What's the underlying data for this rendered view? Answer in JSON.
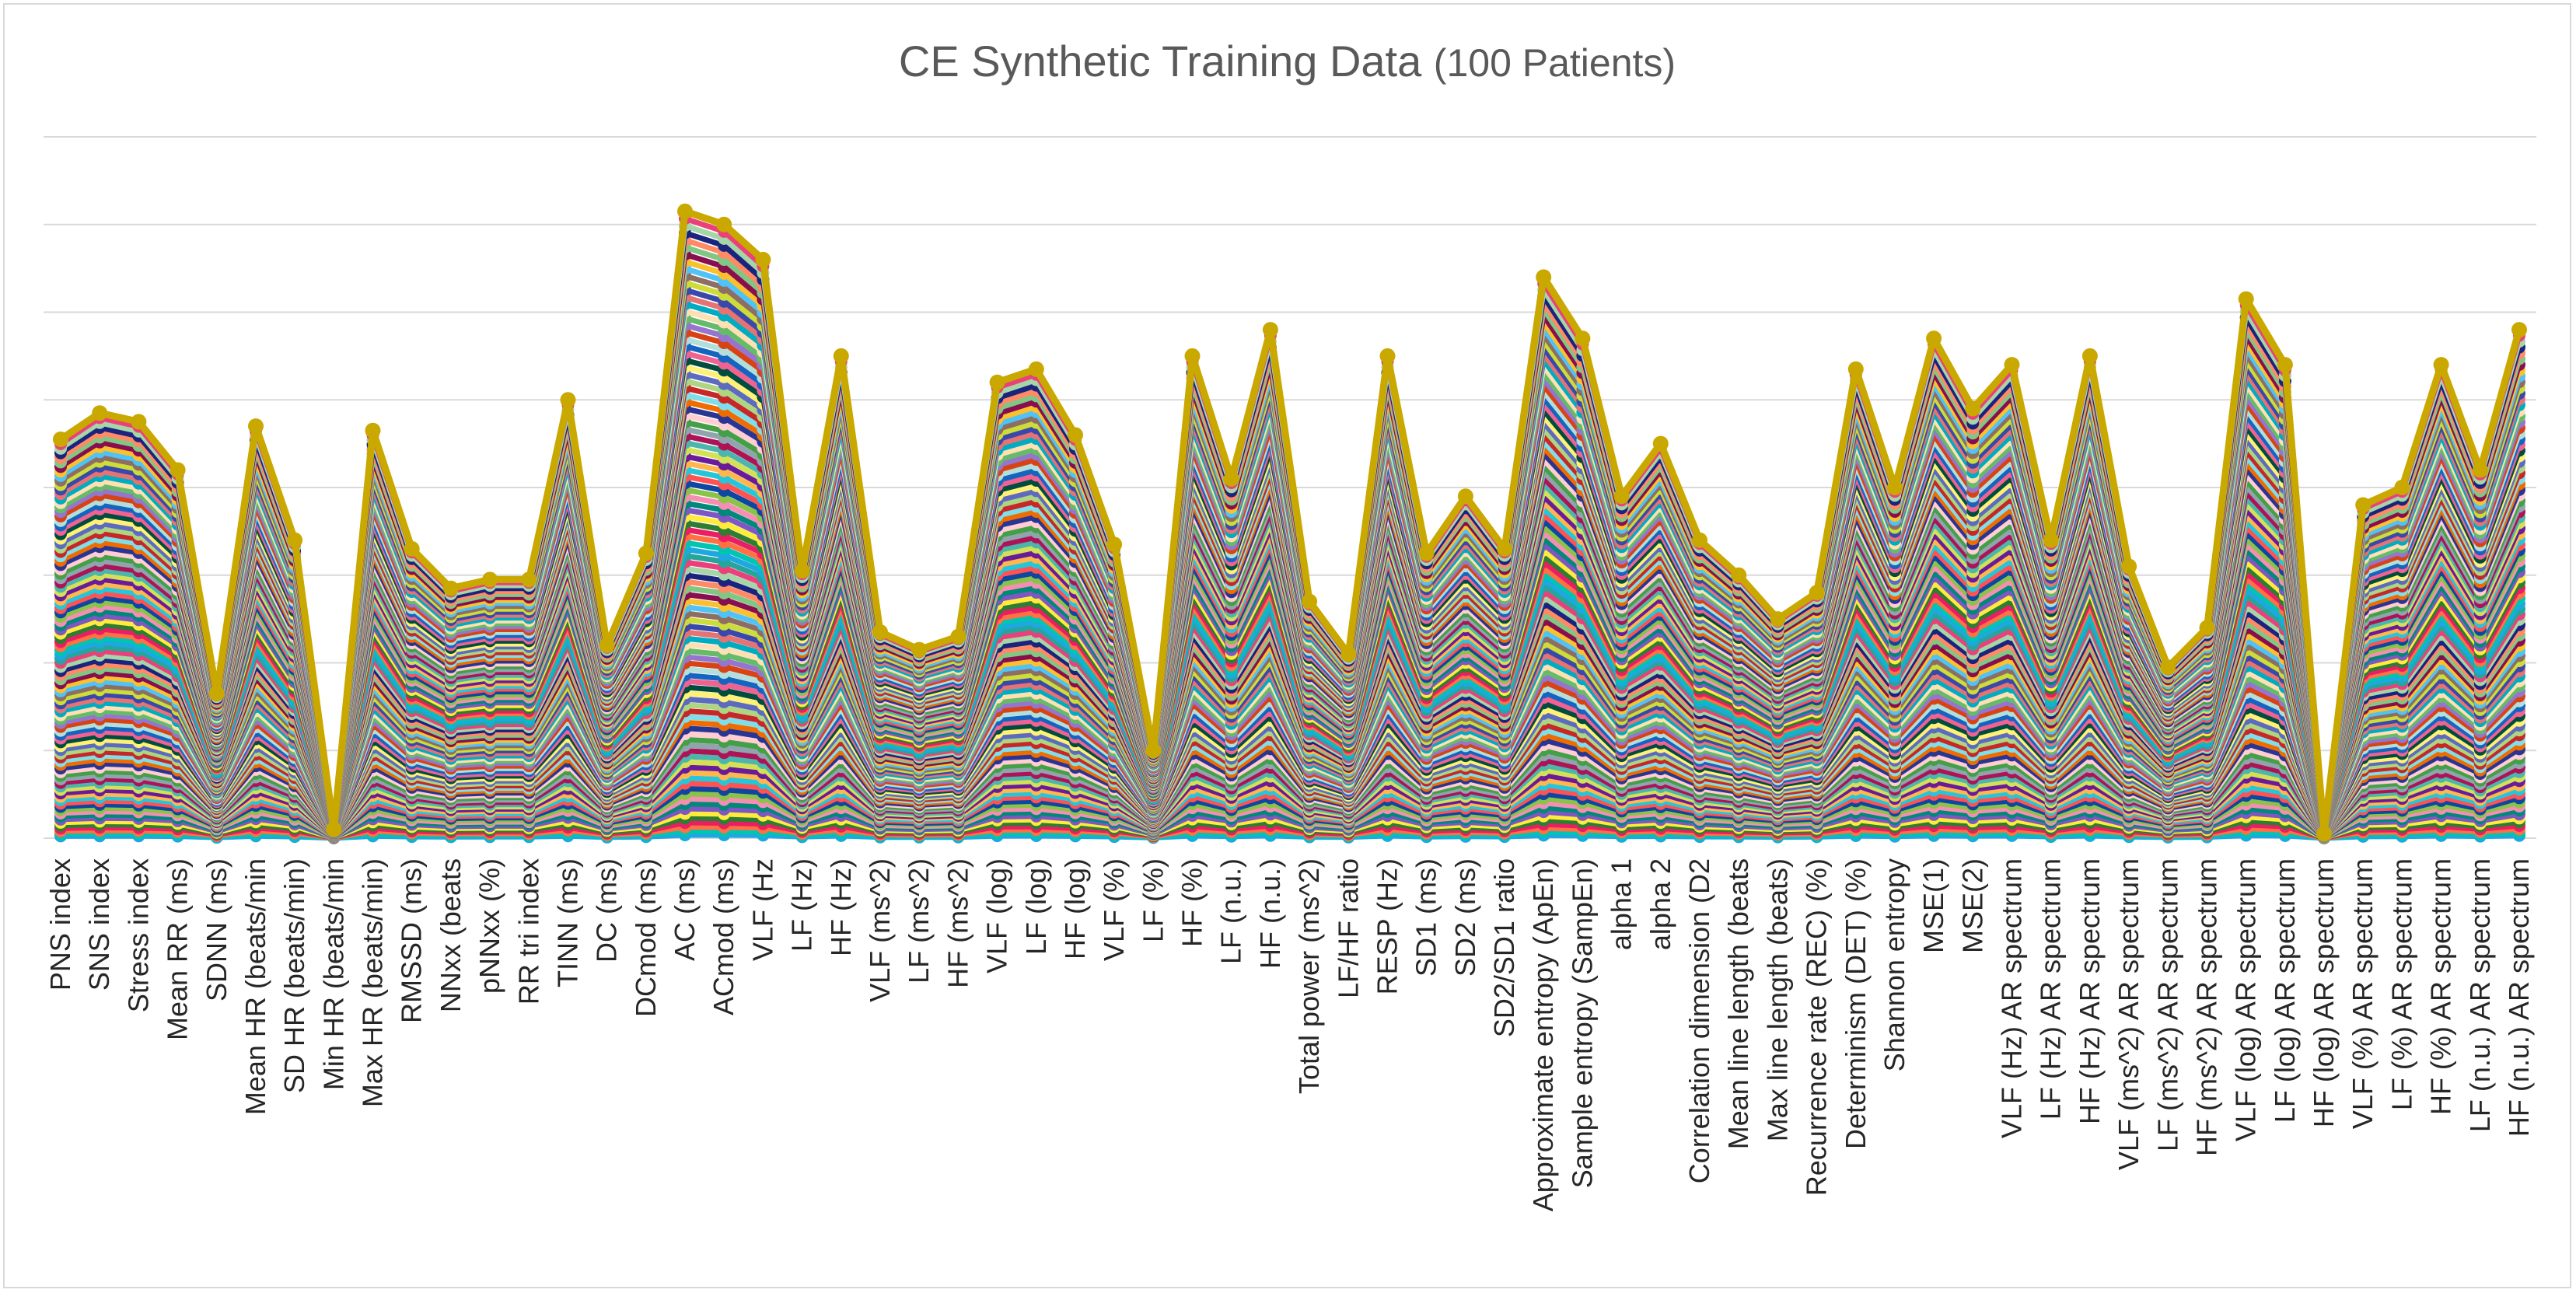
{
  "chart_data": {
    "type": "line",
    "title": "CE Synthetic Training Data",
    "subtitle": "(100 Patients)",
    "xlabel": "",
    "ylabel": "",
    "grid": true,
    "legend": "none",
    "y_axis_labels_visible": false,
    "series_count": 100,
    "categories": [
      "PNS index",
      "SNS index",
      "Stress index",
      "Mean RR  (ms)",
      "SDNN (ms)",
      "Mean HR (beats/min",
      "SD HR (beats/min)",
      "Min HR (beats/min",
      "Max HR (beats/min)",
      "RMSSD (ms)",
      "NNxx (beats",
      "pNNxx (%)",
      "RR tri index",
      "TINN (ms)",
      "DC (ms)",
      "DCmod (ms)",
      "AC (ms)",
      "ACmod (ms)",
      "VLF (Hz",
      "LF (Hz)",
      "HF (Hz)",
      "VLF (ms^2)",
      "LF (ms^2)",
      "HF (ms^2)",
      "VLF (log)",
      "LF (log)",
      "HF (log)",
      "VLF (%)",
      "LF (%)",
      "HF (%)",
      "LF (n.u.)",
      "HF (n.u.)",
      "Total power (ms^2)",
      "LF/HF ratio",
      "RESP (Hz)",
      "SD1 (ms)",
      "SD2 (ms)",
      "SD2/SD1 ratio",
      "Approximate entropy (ApEn)",
      "Sample entropy (SampEn)",
      "alpha 1",
      "alpha 2",
      "Correlation dimension (D2",
      "Mean line length (beats",
      "Max line length (beats)",
      "Recurrence rate (REC) (%)",
      "Determinism (DET) (%)",
      "Shannon entropy",
      "MSE(1)",
      "MSE(2)",
      "VLF (Hz) AR spectrum",
      "LF (Hz) AR spectrum",
      "HF (Hz) AR spectrum",
      "VLF (ms^2) AR spectrum",
      "LF (ms^2) AR spectrum",
      "HF (ms^2) AR spectrum",
      "VLF (log) AR spectrum",
      "LF (log) AR spectrum",
      "HF (log) AR spectrum",
      "VLF (%) AR spectrum",
      "LF (%) AR spectrum",
      "HF (%) AR spectrum",
      "LF (n.u.) AR spectrum",
      "HF (n.u.) AR spectrum"
    ],
    "stack_total": [
      45.5,
      48.5,
      47.5,
      42,
      16.5,
      47,
      34,
      1,
      46.5,
      33,
      28.5,
      29.5,
      29.5,
      50,
      22,
      32.5,
      71.5,
      70,
      66,
      30.5,
      55,
      23.5,
      21.5,
      23,
      52,
      53.5,
      46,
      33.5,
      10,
      55,
      41,
      58,
      27,
      21,
      55,
      32.5,
      39,
      33,
      64,
      57,
      39,
      45,
      34,
      30,
      25,
      28,
      53.5,
      40,
      57,
      49,
      54,
      34,
      55,
      31,
      19.5,
      24,
      61.5,
      54,
      0.5,
      38,
      40,
      54,
      42,
      58
    ],
    "ylim": [
      0,
      80
    ],
    "colors": {
      "top_series": "#c9a800",
      "palette": [
        "#1ea7e0",
        "#00c4b4",
        "#ff7043",
        "#e91e63",
        "#2e7d32",
        "#ffeb3b",
        "#7e57c2",
        "#00897b",
        "#f48fb1",
        "#8bc34a",
        "#0d47a1",
        "#ff5252",
        "#26c6da",
        "#ffb74d",
        "#6a1b9a",
        "#d4e157",
        "#4db6ac",
        "#ad1457",
        "#90a4ae",
        "#43a047",
        "#ffcdd2",
        "#283593",
        "#ef6c00",
        "#80deea",
        "#c62828",
        "#aed581",
        "#5c6bc0",
        "#fff176",
        "#004d40",
        "#f06292",
        "#1565c0",
        "#b2dfdb",
        "#d84315",
        "#9575cd",
        "#66bb6a",
        "#ffe0b2",
        "#00acc1",
        "#e57373",
        "#3949ab",
        "#cddc39",
        "#8d6e63",
        "#4fc3f7",
        "#fbc02d",
        "#880e4f",
        "#81c784",
        "#ff8a65",
        "#1a237e",
        "#a5d6a7",
        "#ec407a",
        "#26a69a"
      ]
    }
  }
}
